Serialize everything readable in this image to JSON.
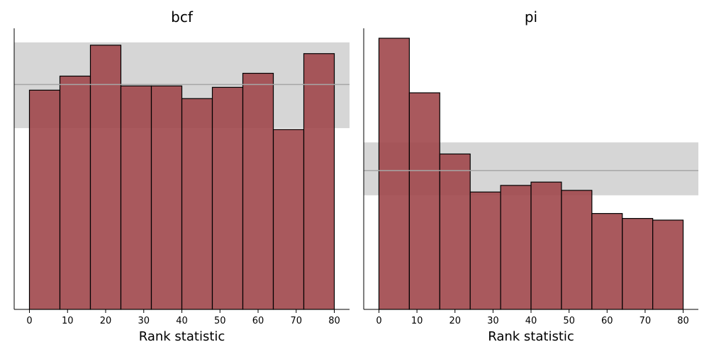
{
  "chart_data": [
    {
      "type": "bar",
      "title": "bcf",
      "xlabel": "Rank statistic",
      "ylabel": "",
      "bin_edges": [
        0,
        8,
        16,
        24,
        32,
        40,
        48,
        56,
        64,
        72,
        80
      ],
      "values": [
        78,
        83,
        94,
        79.5,
        79.5,
        75,
        79,
        84,
        64,
        91
      ],
      "ylim": [
        0,
        100
      ],
      "xlim": [
        -4,
        84
      ],
      "xticks": [
        0,
        10,
        20,
        30,
        40,
        50,
        60,
        70,
        80
      ],
      "reference": {
        "mean": 80,
        "band": [
          64.5,
          95
        ]
      },
      "bar_color": "#a0474b",
      "band_color": "#d6d6d6",
      "line_color": "#a6a6a6"
    },
    {
      "type": "bar",
      "title": "pi",
      "xlabel": "Rank statistic",
      "ylabel": "",
      "bin_edges": [
        0,
        8,
        16,
        24,
        32,
        40,
        48,
        56,
        64,
        72,
        80
      ],
      "values": [
        164,
        131,
        94,
        71,
        75,
        77,
        72,
        58,
        55,
        54
      ],
      "ylim": [
        0,
        170
      ],
      "xlim": [
        -4,
        84
      ],
      "xticks": [
        0,
        10,
        20,
        30,
        40,
        50,
        60,
        70,
        80
      ],
      "reference": {
        "mean": 84,
        "band": [
          69,
          101
        ]
      },
      "bar_color": "#a0474b",
      "band_color": "#d6d6d6",
      "line_color": "#a6a6a6"
    }
  ]
}
